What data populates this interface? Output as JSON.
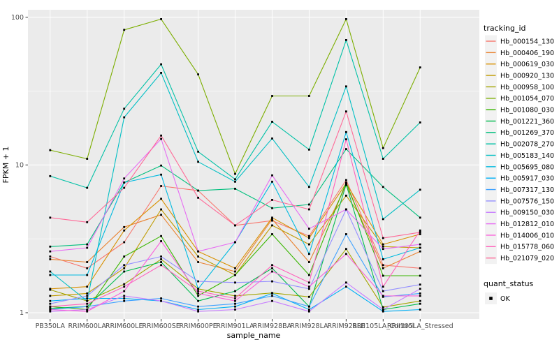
{
  "chart_data": {
    "type": "line",
    "xlabel": "sample_name",
    "ylabel": "FPKM + 1",
    "y_scale": "log10",
    "ylim": [
      0.9,
      110
    ],
    "y_ticks": [
      1,
      10,
      100
    ],
    "y_tick_labels": [
      "1",
      "10",
      "100"
    ],
    "y_minor_ticks": [
      3.162,
      31.62
    ],
    "grid": true,
    "panel_bg": "#EBEBEB",
    "grid_color": "#FFFFFF",
    "point_color": "#000000",
    "point_shape": "square",
    "legend_position": "right",
    "legend": {
      "series_title": "tracking_id",
      "shape_title": "quant_status",
      "shape_label": "OK",
      "key_bg": "#F2F2F2"
    },
    "categories": [
      "PB350LA",
      "RRIM600LA",
      "RRIM600LE",
      "RRIM600SE",
      "RRIM600PE",
      "RRIM901LA",
      "RRIM928BA",
      "RRIM928LA",
      "RRIM928LE",
      "RRII105LA_Control",
      "RRII105LA_Stressed"
    ],
    "series": [
      {
        "name": "Hb_000154_130",
        "color": "#F8766D",
        "values": [
          2.4,
          2.0,
          3.0,
          7.2,
          6.7,
          3.9,
          4.2,
          3.3,
          7.9,
          2.1,
          2.0
        ]
      },
      {
        "name": "Hb_000406_190",
        "color": "#EA8331",
        "values": [
          2.3,
          2.2,
          3.8,
          4.6,
          2.2,
          1.9,
          4.3,
          2.2,
          7.3,
          2.0,
          2.6
        ]
      },
      {
        "name": "Hb_000619_030",
        "color": "#D89000",
        "values": [
          1.45,
          1.5,
          3.6,
          5.9,
          2.6,
          2.0,
          4.4,
          3.2,
          7.5,
          2.9,
          3.4
        ]
      },
      {
        "name": "Hb_000920_130",
        "color": "#C09B00",
        "values": [
          1.3,
          1.35,
          2.0,
          5.0,
          2.4,
          1.8,
          3.9,
          2.9,
          6.2,
          2.8,
          2.75
        ]
      },
      {
        "name": "Hb_000958_100",
        "color": "#A3A500",
        "values": [
          1.43,
          1.2,
          1.56,
          2.3,
          1.45,
          1.3,
          1.36,
          1.28,
          2.7,
          1.09,
          1.2
        ]
      },
      {
        "name": "Hb_001054_070",
        "color": "#7CAE00",
        "values": [
          12.6,
          11.0,
          82,
          97,
          41,
          8.7,
          29.3,
          29.3,
          97,
          13,
          45.7
        ]
      },
      {
        "name": "Hb_001080_030",
        "color": "#39B600",
        "values": [
          1.1,
          1.05,
          2.4,
          3.3,
          1.3,
          1.8,
          3.4,
          1.8,
          7.6,
          1.78,
          1.78
        ]
      },
      {
        "name": "Hb_001221_360",
        "color": "#00BB4E",
        "values": [
          1.07,
          1.1,
          1.9,
          2.2,
          1.2,
          1.4,
          2.0,
          1.1,
          7.4,
          1.05,
          1.15
        ]
      },
      {
        "name": "Hb_001269_370",
        "color": "#00BF7D",
        "values": [
          2.8,
          2.9,
          7.6,
          9.9,
          6.7,
          6.9,
          5.1,
          5.4,
          12.8,
          7.1,
          4.4
        ]
      },
      {
        "name": "Hb_002078_270",
        "color": "#00C1A6",
        "values": [
          8.4,
          7.0,
          24,
          48,
          12.3,
          8.0,
          19.6,
          12.7,
          70,
          11,
          19.4
        ]
      },
      {
        "name": "Hb_005183_140",
        "color": "#00BFC4",
        "values": [
          1.9,
          1.2,
          21,
          42,
          10.5,
          7.7,
          15.1,
          7.1,
          34,
          4.3,
          6.8
        ]
      },
      {
        "name": "Hb_005695_080",
        "color": "#00BAE0",
        "values": [
          1.8,
          1.8,
          7.6,
          8.6,
          1.45,
          3.0,
          7.7,
          2.5,
          16.7,
          2.3,
          2.75
        ]
      },
      {
        "name": "Hb_005917_030",
        "color": "#00B0F6",
        "values": [
          1.2,
          1.25,
          1.25,
          1.2,
          1.05,
          1.1,
          1.35,
          1.05,
          1.5,
          1.02,
          1.05
        ]
      },
      {
        "name": "Hb_007317_130",
        "color": "#3FA2FF",
        "values": [
          1.05,
          1.1,
          1.2,
          1.25,
          1.1,
          1.15,
          1.3,
          1.1,
          3.4,
          1.28,
          1.35
        ]
      },
      {
        "name": "Hb_007576_150",
        "color": "#9590FF",
        "values": [
          1.15,
          1.3,
          2.1,
          2.4,
          1.63,
          1.6,
          1.63,
          1.45,
          5.0,
          1.4,
          1.55
        ]
      },
      {
        "name": "Hb_009150_030",
        "color": "#C77CFF",
        "values": [
          1.02,
          1.05,
          1.3,
          1.2,
          1.02,
          1.05,
          1.2,
          1.02,
          1.6,
          1.05,
          1.45
        ]
      },
      {
        "name": "Hb_012812_010",
        "color": "#E76BF3",
        "values": [
          2.6,
          2.75,
          8.1,
          15.0,
          2.6,
          3.0,
          8.5,
          3.7,
          5.0,
          2.7,
          2.9
        ]
      },
      {
        "name": "Hb_014006_010",
        "color": "#FA62DB",
        "values": [
          1.05,
          1.02,
          1.4,
          3.05,
          1.35,
          1.2,
          1.9,
          1.5,
          2.5,
          1.3,
          1.3
        ]
      },
      {
        "name": "Hb_015778_060",
        "color": "#FF62BC",
        "values": [
          1.1,
          1.15,
          1.5,
          2.1,
          1.4,
          1.25,
          2.1,
          1.6,
          14.9,
          1.5,
          3.6
        ]
      },
      {
        "name": "Hb_021079_020",
        "color": "#FF6A98",
        "values": [
          4.4,
          4.1,
          7.0,
          15.8,
          6.0,
          3.9,
          5.8,
          5.0,
          23,
          3.2,
          3.5
        ]
      }
    ]
  }
}
